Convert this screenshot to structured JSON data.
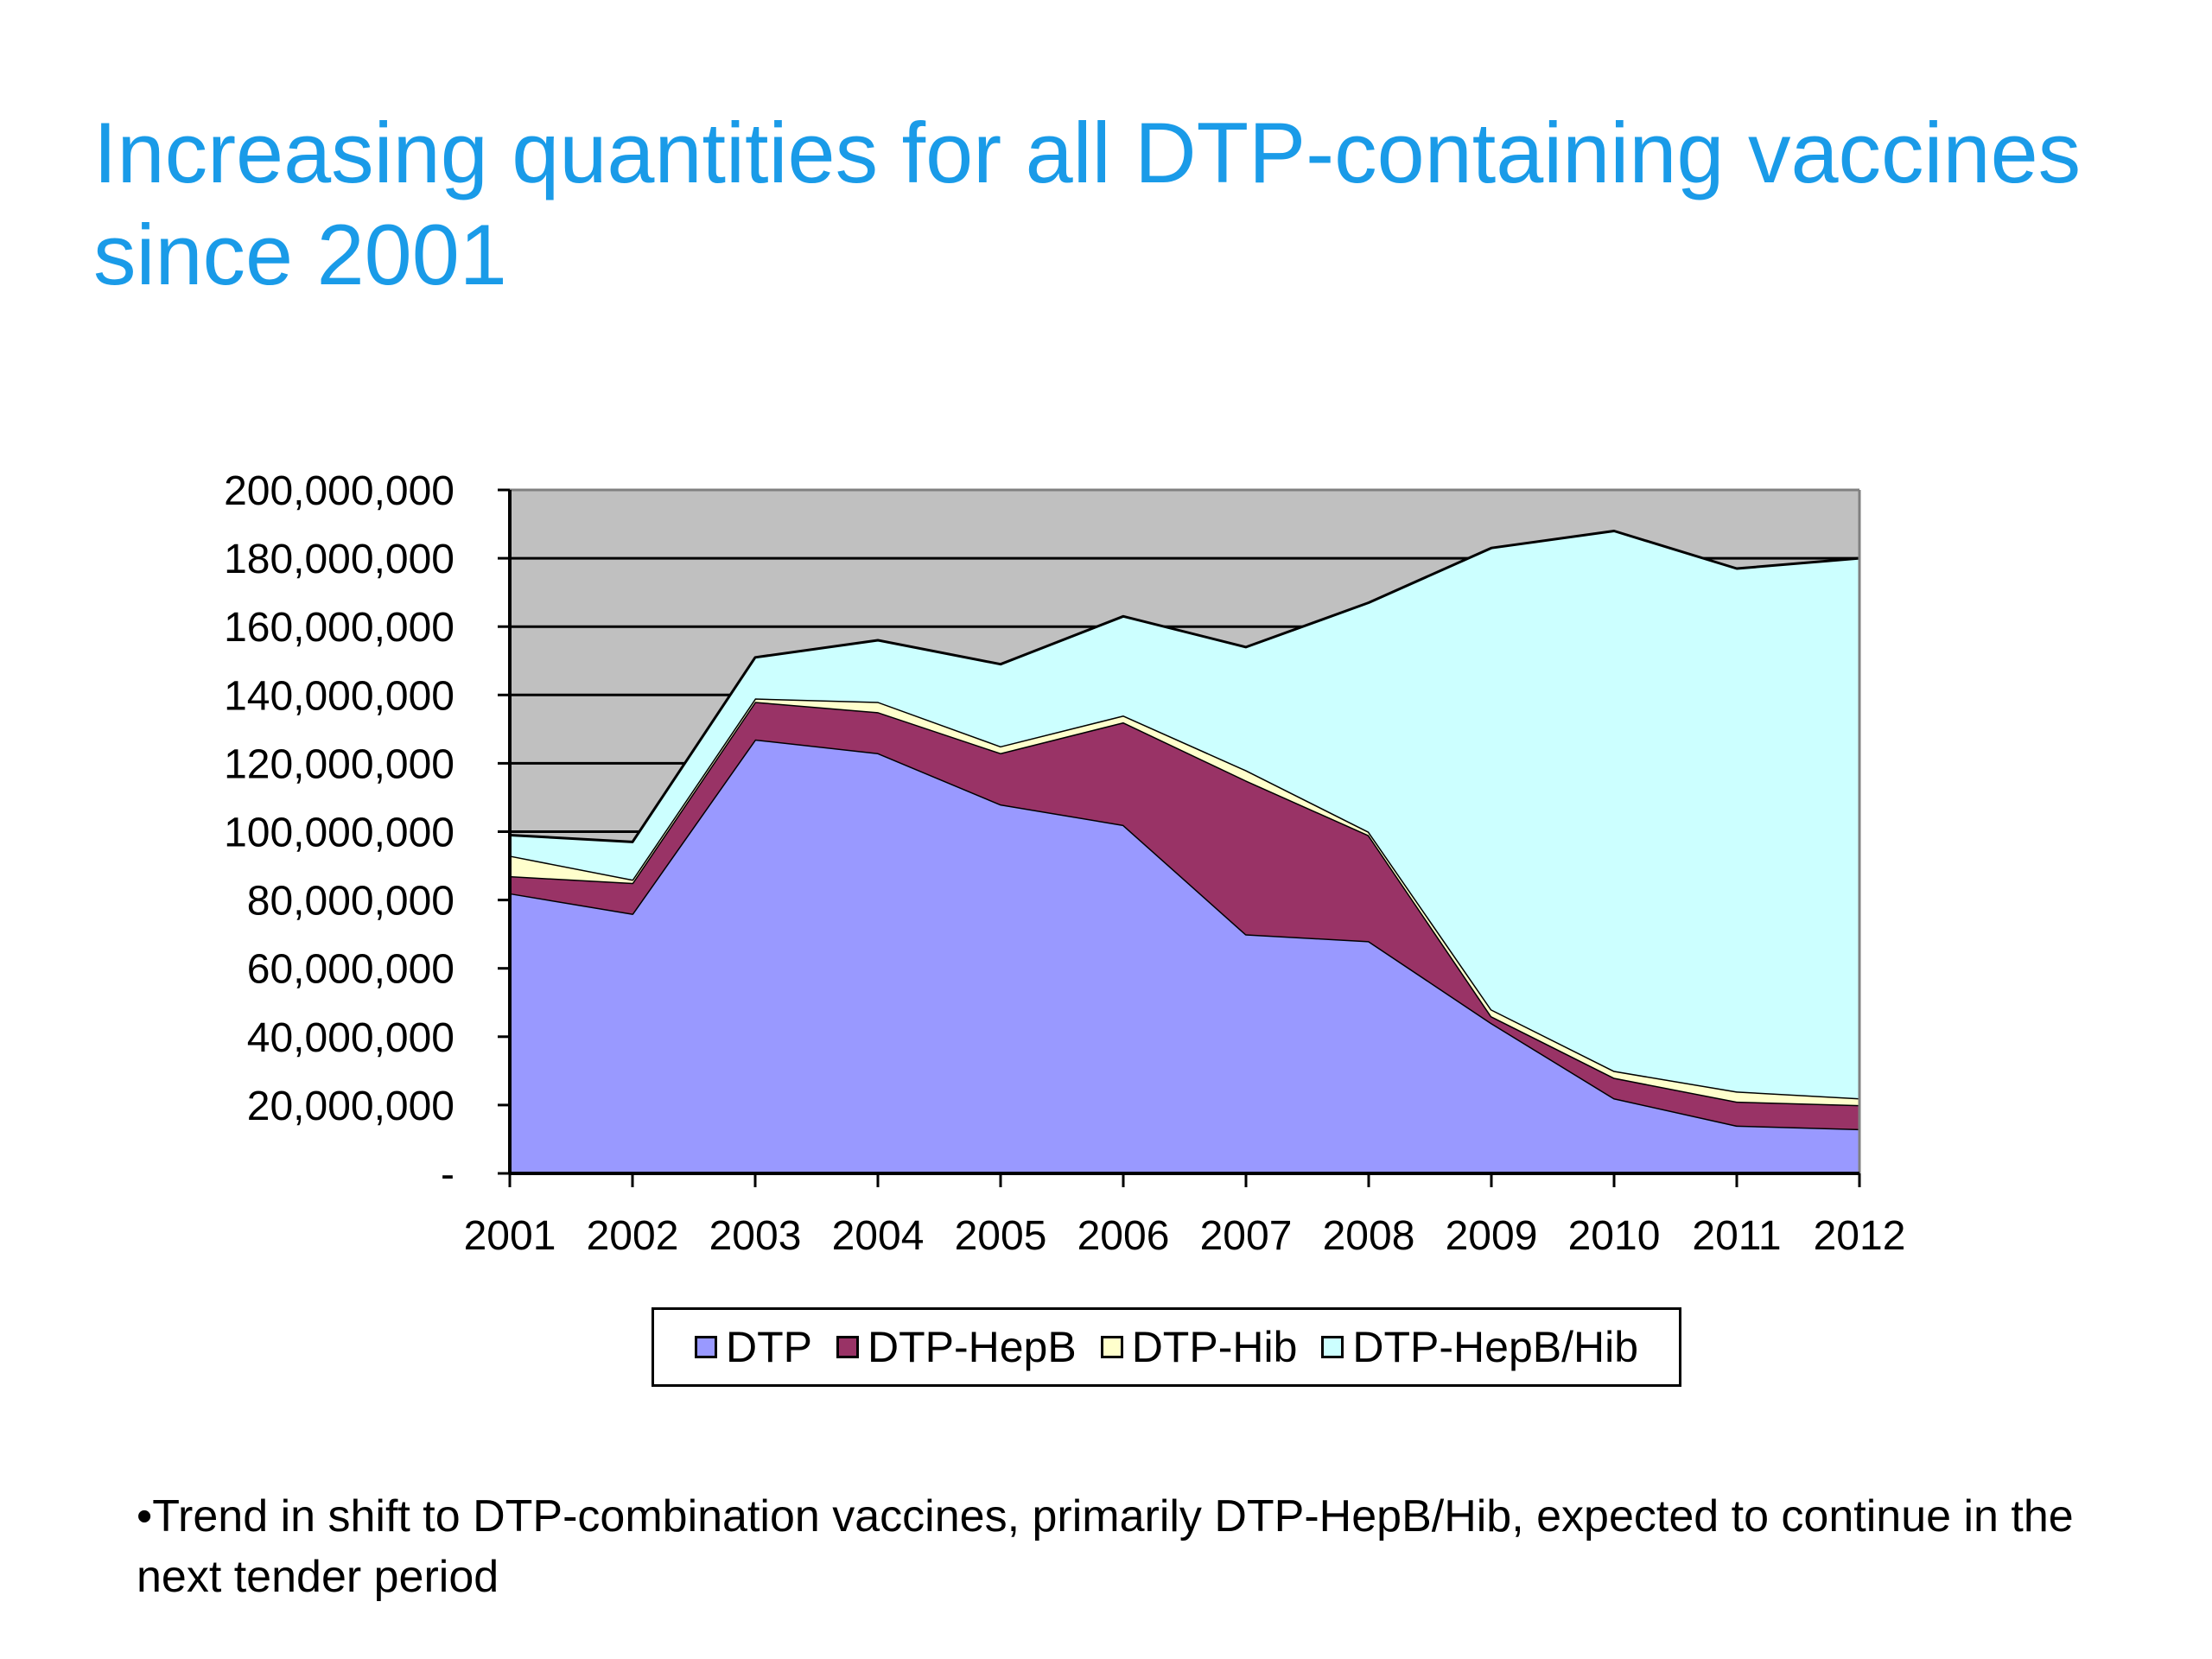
{
  "slide": {
    "title": "Increasing quantities for all DTP-containing vaccines since 2001",
    "bullet": "•Trend in shift to DTP-combination vaccines, primarily DTP-HepB/Hib, expected to continue in the next tender period"
  },
  "chart_data": {
    "type": "area",
    "stacked": true,
    "title": "",
    "xlabel": "",
    "ylabel": "",
    "x": [
      "2001",
      "2002",
      "2003",
      "2004",
      "2005",
      "2006",
      "2007",
      "2008",
      "2009",
      "2010",
      "2011",
      "2012"
    ],
    "ylim": [
      0,
      200000000
    ],
    "y_ticks": [
      0,
      20000000,
      40000000,
      60000000,
      80000000,
      100000000,
      120000000,
      140000000,
      160000000,
      180000000,
      200000000
    ],
    "y_tick_labels": [
      "-",
      "20,000,000",
      "40,000,000",
      "60,000,000",
      "80,000,000",
      "100,000,000",
      "120,000,000",
      "140,000,000",
      "160,000,000",
      "180,000,000",
      "200,000,000"
    ],
    "grid": true,
    "plot_background": "#c0c0c0",
    "legend_position": "bottom",
    "series": [
      {
        "name": "DTP",
        "color": "#9999ff",
        "values": [
          82000000,
          76000000,
          127000000,
          123000000,
          108000000,
          102000000,
          70000000,
          68000000,
          44000000,
          22000000,
          14000000,
          13000000
        ]
      },
      {
        "name": "DTP-HepB",
        "color": "#993366",
        "values": [
          5000000,
          9000000,
          11000000,
          12000000,
          15000000,
          30000000,
          45000000,
          31000000,
          2000000,
          6000000,
          7000000,
          7000000
        ]
      },
      {
        "name": "DTP-Hib",
        "color": "#ffffcc",
        "values": [
          6000000,
          1000000,
          1000000,
          3000000,
          2000000,
          2000000,
          3000000,
          1000000,
          2000000,
          2000000,
          3000000,
          2000000
        ]
      },
      {
        "name": "DTP-HepB/Hib",
        "color": "#ccffff",
        "values": [
          6000000,
          11000000,
          12000000,
          18000000,
          24000000,
          29000000,
          36000000,
          67000000,
          135000000,
          158000000,
          153000000,
          158000000
        ]
      }
    ]
  }
}
